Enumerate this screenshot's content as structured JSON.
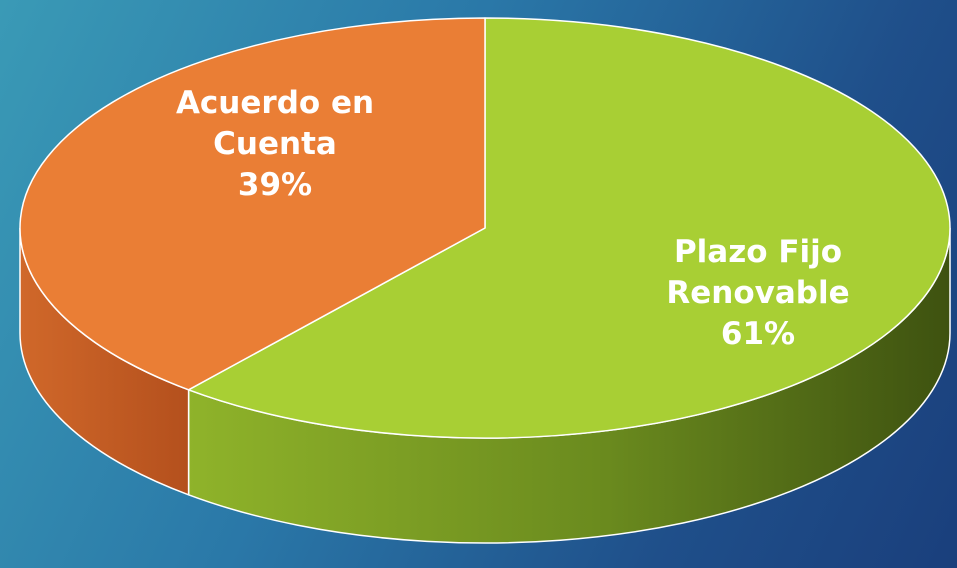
{
  "chart_data": {
    "type": "pie",
    "style": "3d-exploded-tilt",
    "slices": [
      {
        "name": "Plazo Fijo Renovable",
        "label_lines": [
          "Plazo Fijo",
          "Renovable"
        ],
        "percent_label": "61%",
        "value": 61,
        "color": "#a8cf34",
        "side_color": "#6a8a1e"
      },
      {
        "name": "Acuerdo en Cuenta",
        "label_lines": [
          "Acuerdo en",
          "Cuenta"
        ],
        "percent_label": "39%",
        "value": 39,
        "color": "#ea7e35",
        "side_color": "#b9551f"
      }
    ],
    "background": {
      "from": "#3a9ab6",
      "to": "#1a3f7c"
    }
  }
}
